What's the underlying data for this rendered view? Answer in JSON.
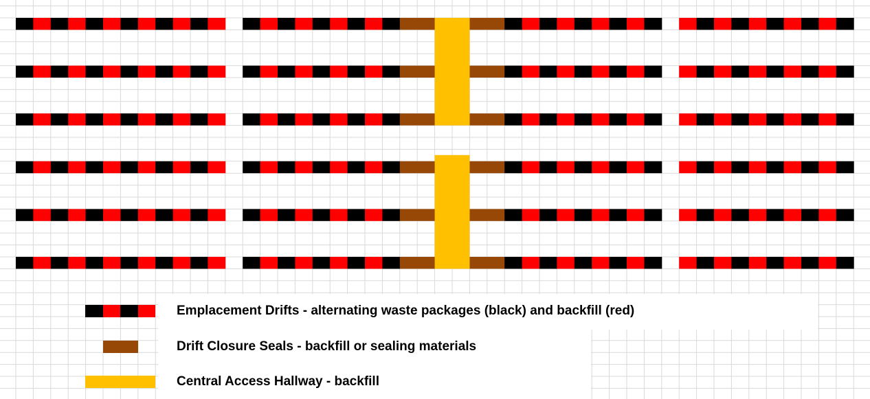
{
  "legend": {
    "items": [
      {
        "label": "Emplacement Drifts - alternating waste packages (black) and backfill (red)"
      },
      {
        "label": "Drift Closure Seals - backfill or sealing materials"
      },
      {
        "label": "Central Access Hallway - backfill"
      }
    ]
  }
}
